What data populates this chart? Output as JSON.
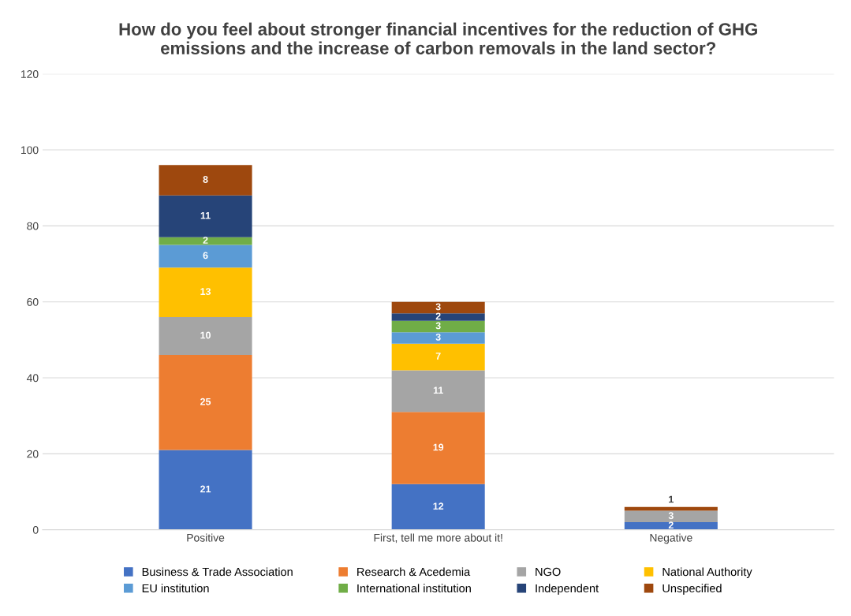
{
  "chart_data": {
    "type": "bar",
    "stacked": true,
    "title": "How do you feel about stronger financial incentives for the reduction of GHG\nemissions and the increase of carbon removals in the land sector?",
    "categories": [
      "Positive",
      "First, tell me more about it!",
      "Negative"
    ],
    "series": [
      {
        "name": "Business & Trade Association",
        "color": "#4472c4",
        "values": [
          21,
          12,
          2
        ],
        "value_labels": [
          "21",
          "12",
          "2"
        ]
      },
      {
        "name": "Research & Acedemia",
        "color": "#ed7d31",
        "values": [
          25,
          19,
          0
        ],
        "value_labels": [
          "25",
          "19",
          null
        ]
      },
      {
        "name": "NGO",
        "color": "#a5a5a5",
        "values": [
          10,
          11,
          3
        ],
        "value_labels": [
          "10",
          "11",
          "3"
        ]
      },
      {
        "name": "National Authority",
        "color": "#ffc000",
        "values": [
          13,
          7,
          0
        ],
        "value_labels": [
          "13",
          "7",
          null
        ]
      },
      {
        "name": "EU institution",
        "color": "#5b9bd5",
        "values": [
          6,
          3,
          0
        ],
        "value_labels": [
          "6",
          "3",
          null
        ]
      },
      {
        "name": "International institution",
        "color": "#70ad47",
        "values": [
          2,
          3,
          0
        ],
        "value_labels": [
          "2",
          "3",
          null
        ]
      },
      {
        "name": "Independent",
        "color": "#264478",
        "values": [
          11,
          2,
          0
        ],
        "value_labels": [
          "11",
          "2",
          null
        ]
      },
      {
        "name": "Unspecified",
        "color": "#9e480e",
        "values": [
          8,
          3,
          1
        ],
        "value_labels": [
          "8",
          "3",
          "1"
        ]
      }
    ],
    "ylim": [
      0,
      120
    ],
    "yticks": [
      0,
      20,
      40,
      60,
      80,
      100,
      120
    ],
    "grid": "y",
    "legend": "bottom"
  }
}
